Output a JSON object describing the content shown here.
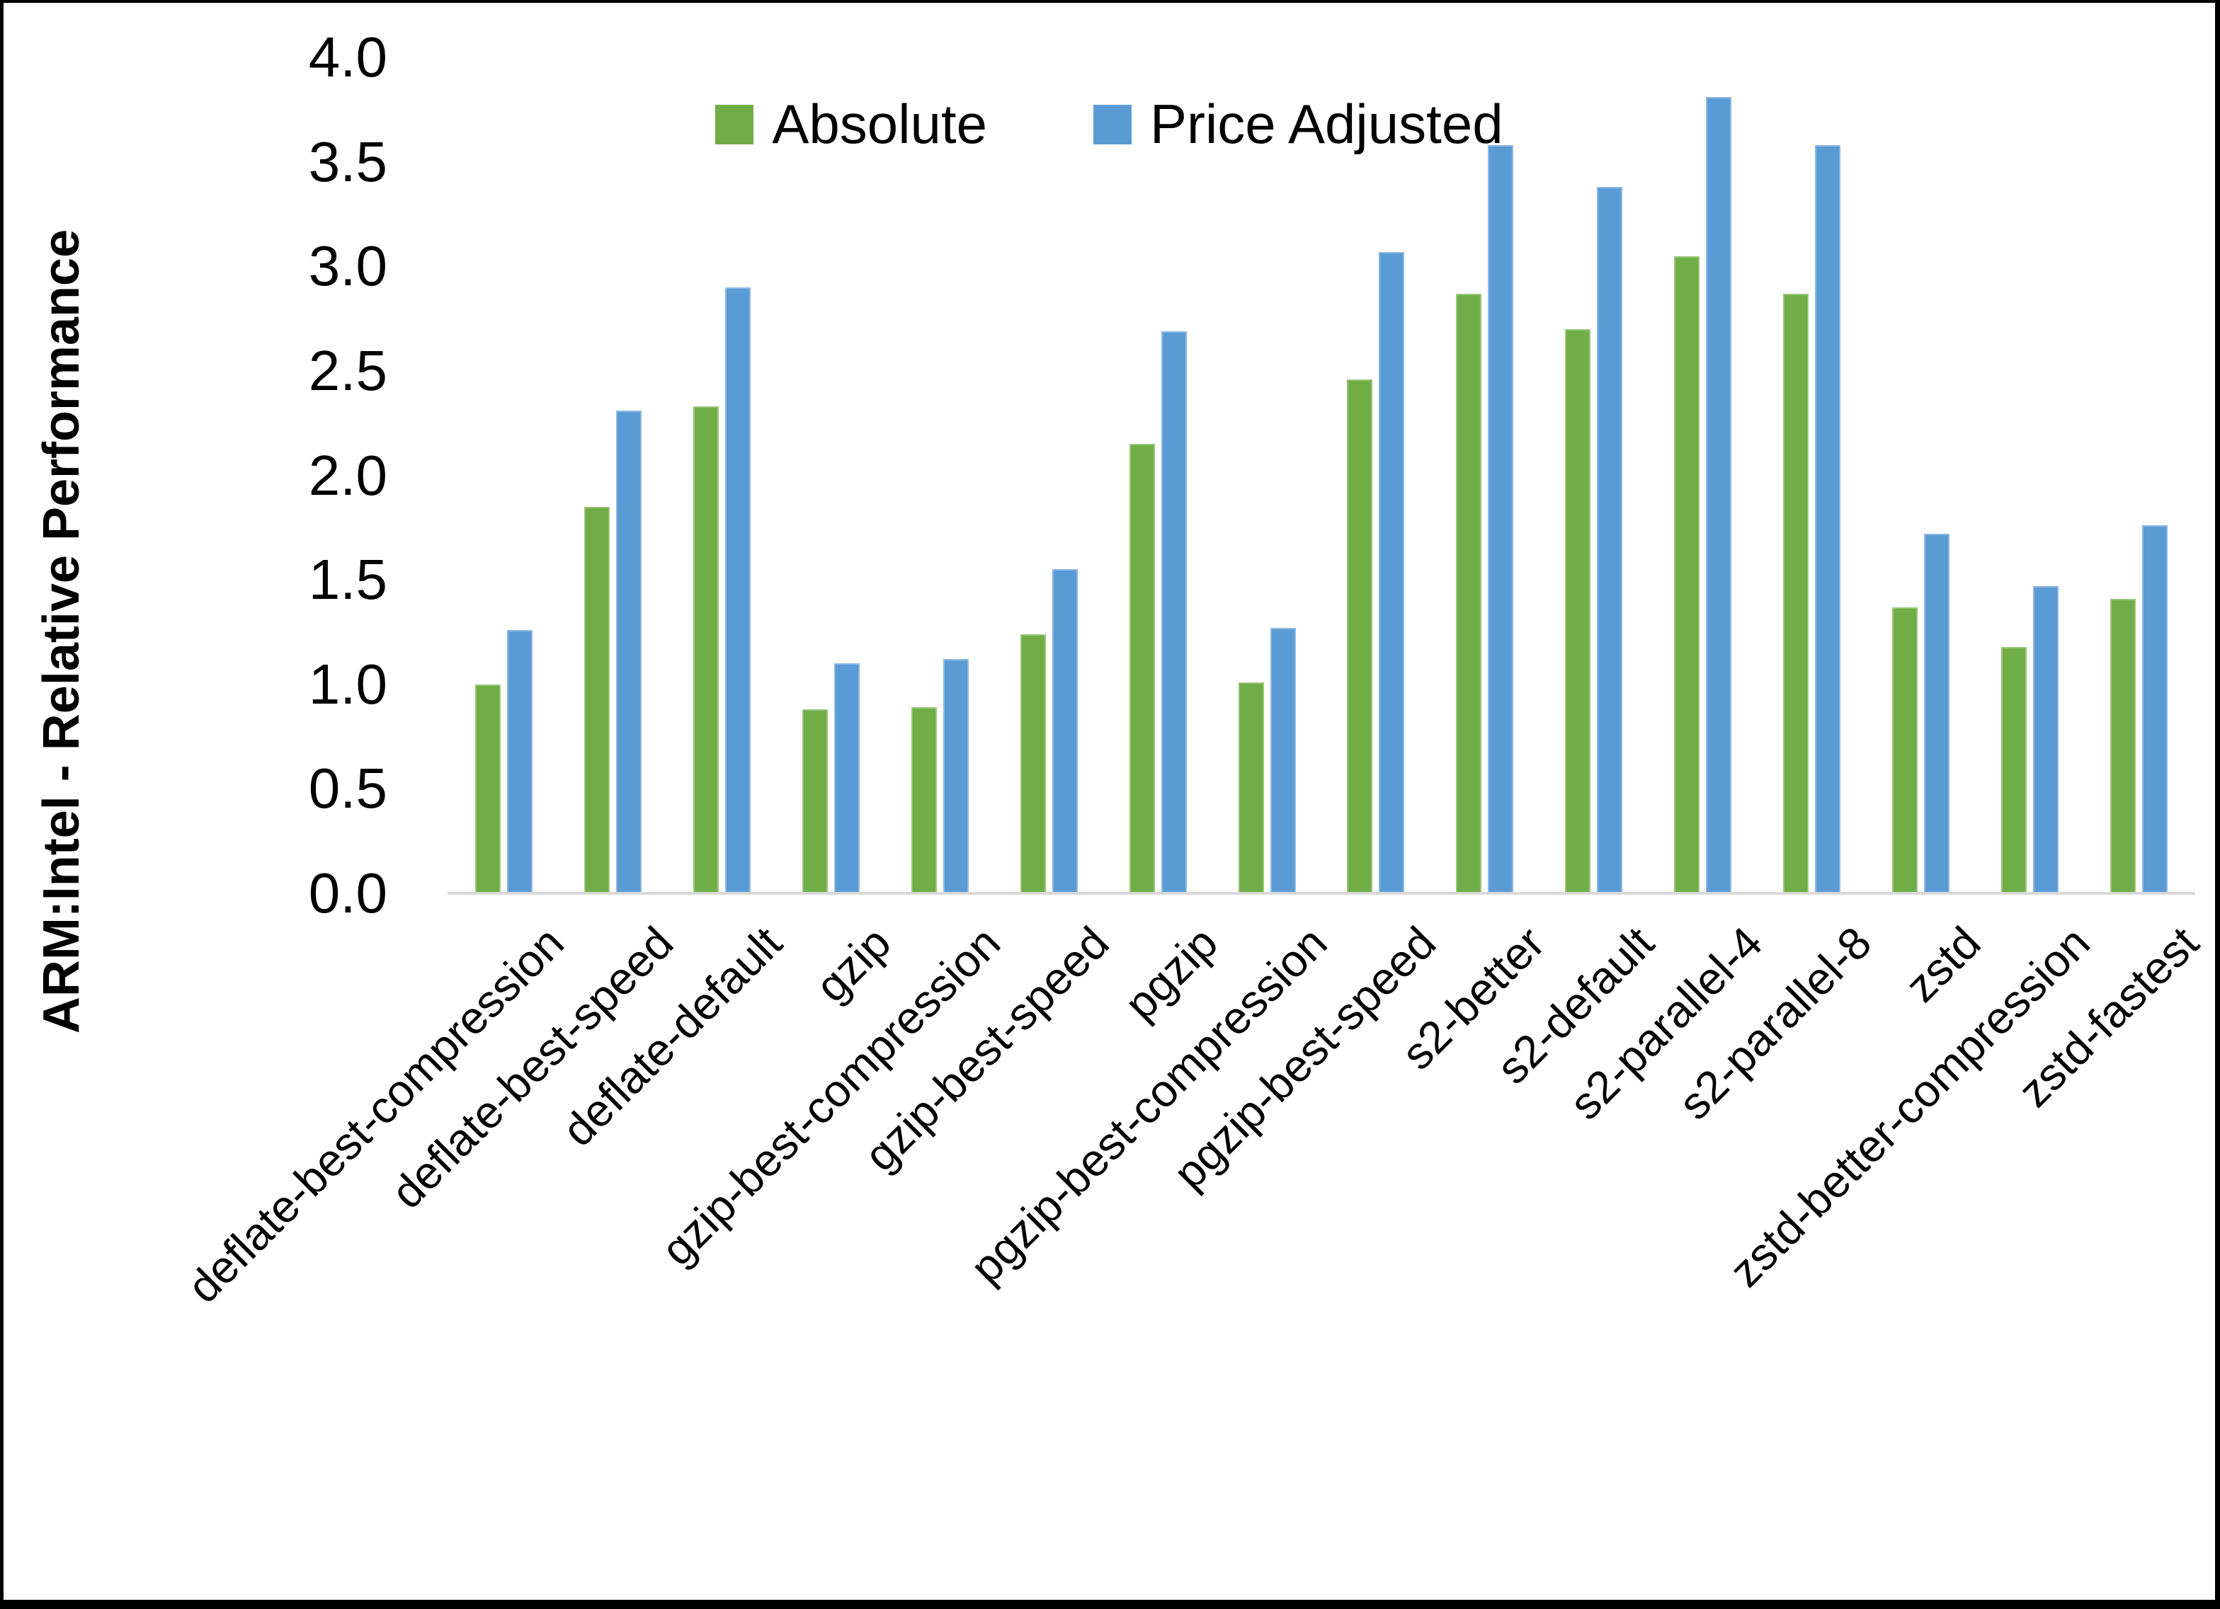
{
  "chart_data": {
    "type": "bar",
    "title": "",
    "ylabel": "ARM:Intel - Relative Performance",
    "xlabel": "",
    "ylim": [
      0,
      4.0
    ],
    "yticks": [
      {
        "label": "0.0",
        "value": 0.0
      },
      {
        "label": "0.5",
        "value": 0.5
      },
      {
        "label": "1.0",
        "value": 1.0
      },
      {
        "label": "1.5",
        "value": 1.5
      },
      {
        "label": "2.0",
        "value": 2.0
      },
      {
        "label": "2.5",
        "value": 2.5
      },
      {
        "label": "3.0",
        "value": 3.0
      },
      {
        "label": "3.5",
        "value": 3.5
      },
      {
        "label": "4.0",
        "value": 4.0
      }
    ],
    "grid": false,
    "legend_position": "top-center",
    "categories": [
      "deflate-best-compression",
      "deflate-best-speed",
      "deflate-default",
      "gzip",
      "gzip-best-compression",
      "gzip-best-speed",
      "pgzip",
      "pgzip-best-compression",
      "pgzip-best-speed",
      "s2-better",
      "s2-default",
      "s2-parallel-4",
      "s2-parallel-8",
      "zstd",
      "zstd-better-compression",
      "zstd-fastest"
    ],
    "series": [
      {
        "name": "Absolute",
        "color": "#70AD47",
        "border_color": "#9AC578",
        "values": [
          1.0,
          1.85,
          2.33,
          0.88,
          0.89,
          1.24,
          2.15,
          1.01,
          2.46,
          2.87,
          2.7,
          3.05,
          2.87,
          1.37,
          1.18,
          1.41
        ]
      },
      {
        "name": "Price Adjusted",
        "color": "#5B9BD5",
        "border_color": "#8CB8E4",
        "values": [
          1.26,
          2.31,
          2.9,
          1.1,
          1.12,
          1.55,
          2.69,
          1.27,
          3.07,
          3.58,
          3.38,
          3.81,
          3.58,
          1.72,
          1.47,
          1.76
        ]
      }
    ],
    "axis_line_color": "#D9D9D9",
    "text_color": "#000000",
    "background": "#FFFFFF",
    "frame_border_color": "#000000"
  }
}
